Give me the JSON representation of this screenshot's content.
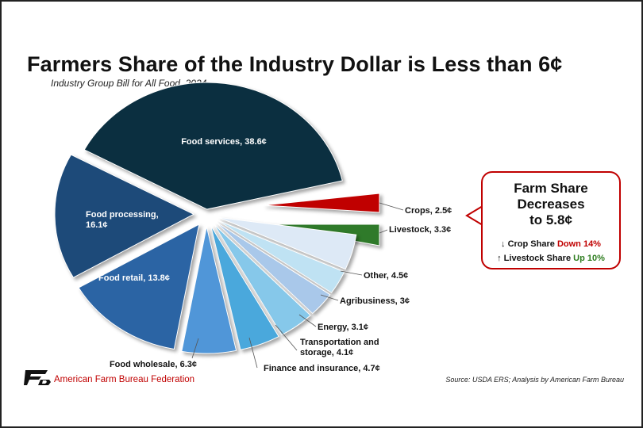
{
  "chart_data": {
    "type": "pie",
    "title": "Farmers Share of the Industry Dollar is Less than 6¢",
    "subtitle": "Industry Group Bill for All Food, 2024",
    "unit": "¢",
    "slices": [
      {
        "label": "Food services, 38.6¢",
        "value": 38.6,
        "color": "#0b2f40"
      },
      {
        "label": "Crops, 2.5¢",
        "value": 2.5,
        "color": "#c00000"
      },
      {
        "label": "Livestock, 3.3¢",
        "value": 3.3,
        "color": "#2f7a2a"
      },
      {
        "label": "Other, 4.5¢",
        "value": 4.5,
        "color": "#dde9f6"
      },
      {
        "label": "Agribusiness, 3¢",
        "value": 3.0,
        "color": "#bfe2f3"
      },
      {
        "label": "Energy, 3.1¢",
        "value": 3.1,
        "color": "#a9c8ea"
      },
      {
        "label": "Transportation and storage, 4.1¢",
        "value": 4.1,
        "color": "#86c8ea"
      },
      {
        "label": "Finance and insurance, 4.7¢",
        "value": 4.7,
        "color": "#4aa8dc"
      },
      {
        "label": "Food wholesale, 6.3¢",
        "value": 6.3,
        "color": "#5096d8"
      },
      {
        "label": "Food retail, 13.8¢",
        "value": 13.8,
        "color": "#2b64a4"
      },
      {
        "label": "Food processing, 16.1¢",
        "value": 16.1,
        "color": "#1d4a79"
      }
    ],
    "exploded": [
      "Crops, 2.5¢",
      "Livestock, 3.3¢"
    ]
  },
  "callout": {
    "headline": [
      "Farm Share",
      "Decreases",
      "to 5.8¢"
    ],
    "crop_prefix": "↓ Crop Share",
    "crop_change": "Down 14%",
    "livestock_prefix": "↑ Livestock Share",
    "livestock_change": "Up 10%",
    "colors": {
      "down": "#c00000",
      "up": "#2e7d1f",
      "border": "#c00000"
    }
  },
  "footer": {
    "organization": "American Farm Bureau Federation",
    "logo_icon": "afbf-logo-icon",
    "source": "Source: USDA ERS; Analysis by American Farm Bureau"
  }
}
